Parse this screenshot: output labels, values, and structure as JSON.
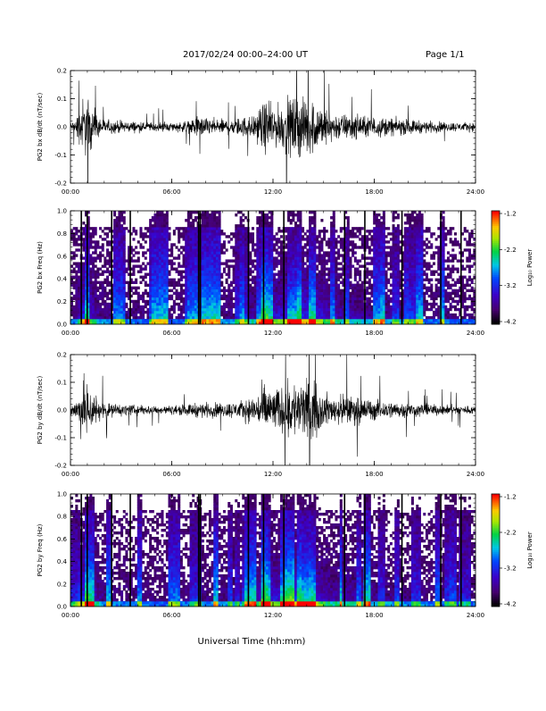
{
  "header": {
    "title": "2017/02/24  00:00–24:00 UT",
    "page": "Page 1/1"
  },
  "xaxis_label": "Universal Time (hh:mm)",
  "chart_data": [
    {
      "type": "line",
      "title": "",
      "ylabel": "PG2 bx dB/dt (nT/sec)",
      "x_ticks": [
        "00:00",
        "06:00",
        "12:00",
        "18:00",
        "24:00"
      ],
      "y_ticks": [
        "0.2",
        "0.1",
        "0.0",
        "-0.1",
        "-0.2"
      ],
      "xlim_hours": [
        0,
        24
      ],
      "ylim": [
        -0.2,
        0.2
      ],
      "envelope": {
        "hour": [
          0,
          0.3,
          0.5,
          0.7,
          1.0,
          1.3,
          1.7,
          2.0,
          3.0,
          4.0,
          5.0,
          6.0,
          7.0,
          7.5,
          8.0,
          9.0,
          10.0,
          11.0,
          11.5,
          12.0,
          12.5,
          13.0,
          13.5,
          14.0,
          14.5,
          15.0,
          15.5,
          16.0,
          17.0,
          18.0,
          19.0,
          20.0,
          21.0,
          22.0,
          23.0,
          24.0
        ],
        "amplitude": [
          0.03,
          0.05,
          0.1,
          0.2,
          0.2,
          0.12,
          0.07,
          0.05,
          0.04,
          0.035,
          0.03,
          0.03,
          0.04,
          0.07,
          0.06,
          0.05,
          0.06,
          0.09,
          0.17,
          0.14,
          0.15,
          0.2,
          0.2,
          0.2,
          0.18,
          0.13,
          0.1,
          0.09,
          0.08,
          0.07,
          0.06,
          0.05,
          0.04,
          0.035,
          0.03,
          0.03
        ]
      }
    },
    {
      "type": "heatmap",
      "title": "",
      "ylabel": "PG2 bx Freq (Hz)",
      "x_ticks": [
        "00:00",
        "06:00",
        "12:00",
        "18:00",
        "24:00"
      ],
      "y_ticks": [
        "1.0",
        "0.8",
        "0.6",
        "0.4",
        "0.2",
        "0.0"
      ],
      "xlim_hours": [
        0,
        24
      ],
      "ylim": [
        0,
        1.0
      ],
      "colorbar": {
        "label": "Log₁₀ Power",
        "ticks": [
          "-1.2",
          "-2.2",
          "-3.2",
          "-4.2"
        ],
        "range": [
          -4.2,
          -1.2
        ]
      }
    },
    {
      "type": "line",
      "title": "",
      "ylabel": "PG2 by dB/dt (nT/sec)",
      "x_ticks": [
        "00:00",
        "06:00",
        "12:00",
        "18:00",
        "24:00"
      ],
      "y_ticks": [
        "0.2",
        "0.1",
        "0.0",
        "-0.1",
        "-0.2"
      ],
      "xlim_hours": [
        0,
        24
      ],
      "ylim": [
        -0.2,
        0.2
      ],
      "envelope": {
        "hour": [
          0,
          0.3,
          0.5,
          0.7,
          1.0,
          1.3,
          1.7,
          2.0,
          3.0,
          4.0,
          5.0,
          6.0,
          7.0,
          7.5,
          8.0,
          9.0,
          10.0,
          11.0,
          11.5,
          12.0,
          12.5,
          13.0,
          13.5,
          14.0,
          14.5,
          15.0,
          15.5,
          16.0,
          17.0,
          18.0,
          19.0,
          20.0,
          21.0,
          22.0,
          23.0,
          24.0
        ],
        "amplitude": [
          0.04,
          0.06,
          0.12,
          0.2,
          0.2,
          0.14,
          0.08,
          0.05,
          0.04,
          0.035,
          0.03,
          0.03,
          0.04,
          0.05,
          0.05,
          0.05,
          0.06,
          0.1,
          0.18,
          0.15,
          0.15,
          0.2,
          0.2,
          0.2,
          0.17,
          0.12,
          0.09,
          0.1,
          0.09,
          0.07,
          0.06,
          0.05,
          0.04,
          0.035,
          0.03,
          0.03
        ]
      }
    },
    {
      "type": "heatmap",
      "title": "",
      "ylabel": "PG2 by Freq (Hz)",
      "x_ticks": [
        "00:00",
        "06:00",
        "12:00",
        "18:00",
        "24:00"
      ],
      "y_ticks": [
        "1.0",
        "0.8",
        "0.6",
        "0.4",
        "0.2",
        "0.0"
      ],
      "xlim_hours": [
        0,
        24
      ],
      "ylim": [
        0,
        1.0
      ],
      "colorbar": {
        "label": "Log₁₀ Power",
        "ticks": [
          "-1.2",
          "-2.2",
          "-3.2",
          "-4.2"
        ],
        "range": [
          -4.2,
          -1.2
        ]
      }
    }
  ]
}
